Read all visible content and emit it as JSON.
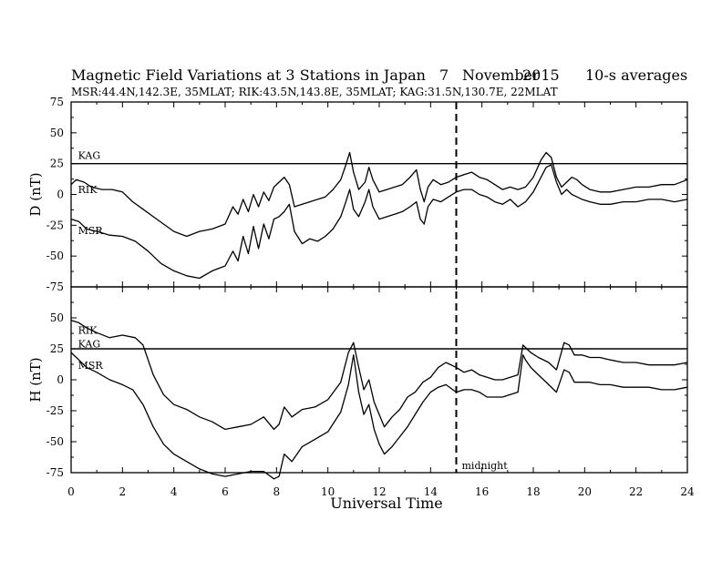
{
  "chart_data": {
    "type": "line",
    "title": {
      "text": "Magnetic Field Variations at 3 Stations in Japan",
      "day": "7",
      "month": "November",
      "year": "2015",
      "averaging": "10-s averages"
    },
    "subtitle": "MSR:44.4N,142.3E, 35MLAT;   RIK:43.5N,143.8E, 35MLAT;  KAG:31.5N,130.7E, 22MLAT",
    "xlabel": "Universal Time",
    "xlim": [
      0,
      24
    ],
    "xticks": [
      0,
      2,
      4,
      6,
      8,
      10,
      12,
      14,
      16,
      18,
      20,
      22,
      24
    ],
    "vline": {
      "x": 15,
      "style": "dashed",
      "label": "midnight"
    },
    "panels": [
      {
        "id": "D",
        "ylabel": "D (nT)",
        "ylim": [
          -75,
          75
        ],
        "yticks": [
          75,
          50,
          25,
          0,
          -25,
          -50,
          -75
        ],
        "station_labels": [
          {
            "text": "KAG",
            "x": 0.2,
            "y": 29
          },
          {
            "text": "RIK",
            "x": 0.2,
            "y": 1
          },
          {
            "text": "MSR",
            "x": 0.2,
            "y": -32
          }
        ],
        "series": [
          {
            "name": "KAG",
            "hline": 25
          },
          {
            "name": "RIK",
            "x": [
              0,
              0.2,
              0.5,
              0.8,
              1.2,
              1.6,
              2.0,
              2.4,
              2.8,
              3.2,
              3.6,
              4.0,
              4.5,
              5.0,
              5.5,
              6.0,
              6.3,
              6.5,
              6.7,
              6.9,
              7.1,
              7.3,
              7.5,
              7.7,
              7.9,
              8.1,
              8.3,
              8.5,
              8.7,
              9.0,
              9.3,
              9.6,
              9.9,
              10.2,
              10.5,
              10.7,
              10.85,
              11.0,
              11.2,
              11.45,
              11.6,
              11.75,
              12.0,
              12.3,
              12.6,
              12.9,
              13.2,
              13.45,
              13.6,
              13.75,
              13.9,
              14.1,
              14.4,
              14.7,
              15.0,
              15.3,
              15.6,
              15.9,
              16.2,
              16.5,
              16.8,
              17.1,
              17.4,
              17.7,
              18.0,
              18.3,
              18.5,
              18.7,
              18.9,
              19.1,
              19.3,
              19.5,
              19.7,
              19.9,
              20.2,
              20.6,
              21.0,
              21.5,
              22.0,
              22.5,
              23.0,
              23.5,
              24.0
            ],
            "values": [
              8,
              12,
              10,
              6,
              4,
              4,
              2,
              -6,
              -12,
              -18,
              -24,
              -30,
              -34,
              -30,
              -28,
              -24,
              -10,
              -16,
              -4,
              -14,
              0,
              -10,
              2,
              -5,
              6,
              10,
              14,
              8,
              -10,
              -8,
              -6,
              -4,
              -2,
              4,
              12,
              24,
              34,
              18,
              4,
              10,
              22,
              12,
              2,
              4,
              6,
              8,
              14,
              20,
              4,
              -6,
              6,
              12,
              8,
              10,
              14,
              16,
              18,
              14,
              12,
              8,
              4,
              6,
              4,
              6,
              14,
              28,
              34,
              30,
              14,
              6,
              10,
              14,
              12,
              8,
              4,
              2,
              2,
              4,
              6,
              6,
              8,
              8,
              12
            ]
          },
          {
            "name": "MSR",
            "x": [
              0,
              0.3,
              0.6,
              1.0,
              1.5,
              2.0,
              2.5,
              3.0,
              3.5,
              4.0,
              4.5,
              5.0,
              5.5,
              6.0,
              6.3,
              6.5,
              6.7,
              6.9,
              7.1,
              7.3,
              7.5,
              7.7,
              7.9,
              8.1,
              8.3,
              8.5,
              8.7,
              9.0,
              9.3,
              9.6,
              9.9,
              10.2,
              10.5,
              10.7,
              10.85,
              11.0,
              11.2,
              11.45,
              11.6,
              11.75,
              12.0,
              12.3,
              12.6,
              12.9,
              13.2,
              13.45,
              13.6,
              13.75,
              13.9,
              14.1,
              14.4,
              14.7,
              15.0,
              15.3,
              15.6,
              15.9,
              16.2,
              16.5,
              16.8,
              17.1,
              17.4,
              17.7,
              18.0,
              18.3,
              18.5,
              18.7,
              18.9,
              19.1,
              19.3,
              19.5,
              19.7,
              19.9,
              20.2,
              20.6,
              21.0,
              21.5,
              22.0,
              22.5,
              23.0,
              23.5,
              24.0
            ],
            "values": [
              -20,
              -22,
              -28,
              -30,
              -33,
              -34,
              -38,
              -46,
              -56,
              -62,
              -66,
              -68,
              -62,
              -58,
              -46,
              -54,
              -34,
              -48,
              -26,
              -44,
              -24,
              -36,
              -20,
              -18,
              -14,
              -8,
              -30,
              -40,
              -36,
              -38,
              -34,
              -28,
              -18,
              -6,
              4,
              -12,
              -18,
              -6,
              4,
              -10,
              -20,
              -18,
              -16,
              -14,
              -10,
              -6,
              -20,
              -24,
              -10,
              -4,
              -6,
              -2,
              2,
              4,
              4,
              0,
              -2,
              -6,
              -8,
              -4,
              -10,
              -6,
              2,
              14,
              22,
              24,
              10,
              0,
              4,
              0,
              -2,
              -4,
              -6,
              -8,
              -8,
              -6,
              -6,
              -4,
              -4,
              -6,
              -4
            ]
          }
        ]
      },
      {
        "id": "H",
        "ylabel": "H (nT)",
        "ylim": [
          -75,
          75
        ],
        "yticks": [
          75,
          50,
          25,
          0,
          -25,
          -50,
          -75
        ],
        "station_labels": [
          {
            "text": "RIK",
            "x": 0.2,
            "y": 37
          },
          {
            "text": "KAG",
            "x": 0.2,
            "y": 26
          },
          {
            "text": "MSR",
            "x": 0.2,
            "y": 9
          }
        ],
        "series": [
          {
            "name": "KAG",
            "hline": 25
          },
          {
            "name": "RIK",
            "x": [
              0,
              0.3,
              0.6,
              1.0,
              1.5,
              2.0,
              2.5,
              2.8,
              3.2,
              3.6,
              4.0,
              4.5,
              5.0,
              5.5,
              6.0,
              6.5,
              7.0,
              7.5,
              7.9,
              8.1,
              8.3,
              8.6,
              9.0,
              9.5,
              10.0,
              10.5,
              10.8,
              11.0,
              11.2,
              11.4,
              11.6,
              11.8,
              12.0,
              12.2,
              12.5,
              12.8,
              13.1,
              13.4,
              13.7,
              14.0,
              14.3,
              14.6,
              15.0,
              15.3,
              15.6,
              15.9,
              16.2,
              16.5,
              16.8,
              17.1,
              17.4,
              17.6,
              17.7,
              17.9,
              18.2,
              18.6,
              18.9,
              19.2,
              19.4,
              19.6,
              19.9,
              20.2,
              20.6,
              21.0,
              21.5,
              22.0,
              22.5,
              23.0,
              23.5,
              24.0
            ],
            "values": [
              48,
              46,
              42,
              38,
              34,
              36,
              34,
              28,
              4,
              -12,
              -20,
              -24,
              -30,
              -34,
              -40,
              -38,
              -36,
              -30,
              -40,
              -36,
              -22,
              -30,
              -24,
              -22,
              -16,
              -2,
              22,
              30,
              10,
              -8,
              0,
              -18,
              -28,
              -38,
              -30,
              -24,
              -14,
              -10,
              -2,
              2,
              10,
              14,
              10,
              6,
              8,
              4,
              2,
              0,
              0,
              2,
              4,
              28,
              26,
              22,
              18,
              14,
              8,
              30,
              28,
              20,
              20,
              18,
              18,
              16,
              14,
              14,
              12,
              12,
              12,
              14
            ]
          },
          {
            "name": "MSR",
            "x": [
              0,
              0.3,
              0.6,
              1.0,
              1.5,
              2.0,
              2.4,
              2.8,
              3.2,
              3.6,
              4.0,
              4.5,
              5.0,
              5.5,
              6.0,
              6.5,
              7.0,
              7.5,
              7.9,
              8.1,
              8.3,
              8.6,
              9.0,
              9.5,
              10.0,
              10.5,
              10.8,
              11.0,
              11.2,
              11.4,
              11.6,
              11.8,
              12.0,
              12.2,
              12.5,
              12.8,
              13.1,
              13.4,
              13.7,
              14.0,
              14.3,
              14.6,
              15.0,
              15.3,
              15.6,
              15.9,
              16.2,
              16.5,
              16.8,
              17.1,
              17.4,
              17.6,
              17.7,
              17.9,
              18.2,
              18.6,
              18.9,
              19.2,
              19.4,
              19.6,
              19.9,
              20.2,
              20.6,
              21.0,
              21.5,
              22.0,
              22.5,
              23.0,
              23.5,
              24.0
            ],
            "values": [
              22,
              16,
              10,
              6,
              0,
              -4,
              -8,
              -20,
              -38,
              -52,
              -60,
              -66,
              -72,
              -76,
              -78,
              -76,
              -74,
              -74,
              -80,
              -78,
              -60,
              -66,
              -54,
              -48,
              -42,
              -26,
              -4,
              20,
              -10,
              -28,
              -20,
              -40,
              -52,
              -60,
              -54,
              -46,
              -38,
              -28,
              -18,
              -10,
              -6,
              -4,
              -10,
              -8,
              -8,
              -10,
              -14,
              -14,
              -14,
              -12,
              -10,
              20,
              16,
              10,
              4,
              -4,
              -10,
              8,
              6,
              -2,
              -2,
              -2,
              -4,
              -4,
              -6,
              -6,
              -6,
              -8,
              -8,
              -6
            ]
          }
        ]
      }
    ],
    "grid": false,
    "legend": "inline"
  }
}
